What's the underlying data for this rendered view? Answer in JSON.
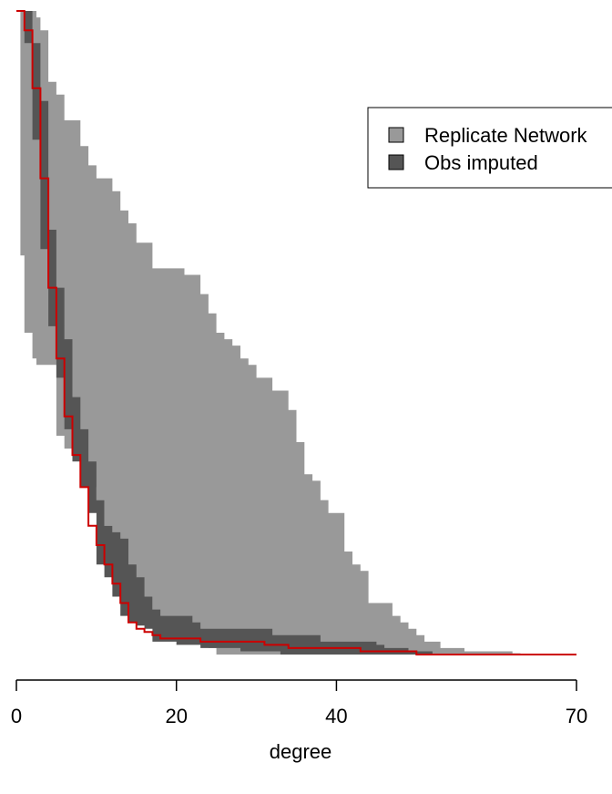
{
  "chart_data": {
    "type": "area",
    "title": "",
    "xlabel": "degree",
    "ylabel": "",
    "xlim": [
      0,
      70
    ],
    "ylim": [
      0,
      1
    ],
    "x_ticks": [
      0,
      20,
      40,
      70
    ],
    "x_tick_labels": [
      "0",
      "20",
      "40",
      "70"
    ],
    "legend": {
      "position": "top-right",
      "entries": [
        {
          "label": "Replicate Network",
          "color": "#999999"
        },
        {
          "label": "Obs imputed",
          "color": "#555555"
        }
      ]
    },
    "series": [
      {
        "name": "Replicate Network",
        "kind": "band",
        "color": "#999999",
        "x": [
          0,
          0.5,
          1,
          2,
          2.5,
          3,
          4,
          5,
          6,
          8,
          9,
          10,
          11,
          12,
          13,
          14,
          15,
          17,
          19,
          21,
          23,
          24,
          25,
          26,
          27,
          28,
          29,
          30,
          31,
          32,
          33,
          34,
          35,
          36,
          37,
          38,
          39,
          40,
          41,
          42,
          43,
          44,
          45,
          46,
          47,
          48,
          49,
          50,
          51,
          52,
          53,
          54,
          55,
          56,
          57,
          58,
          59,
          60,
          61,
          62,
          63,
          64,
          65,
          66,
          67,
          68,
          69,
          70
        ],
        "upper": [
          1.0,
          1.0,
          1.0,
          1.0,
          0.99,
          0.97,
          0.89,
          0.87,
          0.83,
          0.79,
          0.76,
          0.74,
          0.74,
          0.72,
          0.69,
          0.67,
          0.64,
          0.6,
          0.6,
          0.59,
          0.56,
          0.53,
          0.5,
          0.49,
          0.48,
          0.46,
          0.45,
          0.43,
          0.43,
          0.41,
          0.41,
          0.38,
          0.33,
          0.28,
          0.27,
          0.24,
          0.22,
          0.22,
          0.16,
          0.14,
          0.13,
          0.08,
          0.08,
          0.08,
          0.06,
          0.05,
          0.04,
          0.03,
          0.02,
          0.02,
          0.01,
          0.01,
          0.01,
          0.005,
          0.005,
          0.005,
          0.005,
          0.005,
          0.005,
          0.002,
          0.001,
          0.001,
          0.0,
          0.0,
          0.0,
          0.0,
          0.0,
          0.0
        ],
        "lower": [
          1.0,
          0.62,
          0.5,
          0.46,
          0.45,
          0.45,
          0.45,
          0.34,
          0.32,
          0.29,
          0.26,
          0.24,
          0.2,
          0.17,
          0.14,
          0.12,
          0.09,
          0.05,
          0.03,
          0.02,
          0.02,
          0.01,
          0.0,
          0.0,
          0.0,
          0.0,
          0.0,
          0.0,
          0.0,
          0.0,
          0.0,
          0.0,
          0.0,
          0.0,
          0.0,
          0.0,
          0.0,
          0.0,
          0.0,
          0.0,
          0.0,
          0.0,
          0.0,
          0.0,
          0.0,
          0.0,
          0.0,
          0.0,
          0.0,
          0.0,
          0.0,
          0.0,
          0.0,
          0.0,
          0.0,
          0.0,
          0.0,
          0.0,
          0.0,
          0.0,
          0.0,
          0.0,
          0.0,
          0.0,
          0.0,
          0.0,
          0.0,
          0.0
        ]
      },
      {
        "name": "Obs imputed",
        "kind": "band",
        "color": "#555555",
        "x": [
          0,
          1,
          2,
          3,
          4,
          5,
          6,
          7,
          8,
          9,
          10,
          11,
          12,
          13,
          14,
          15,
          16,
          17,
          18,
          19,
          20,
          21,
          22,
          23,
          24,
          25,
          26,
          27,
          28,
          29,
          30,
          31,
          32,
          33,
          34,
          35,
          36,
          37,
          38,
          39,
          40,
          41,
          42,
          43,
          44,
          45,
          46,
          47,
          48,
          49,
          50,
          51,
          52,
          53,
          54,
          55,
          56,
          57,
          58,
          59,
          60,
          61,
          62,
          63,
          64,
          65,
          66,
          67,
          68,
          69,
          70
        ],
        "upper": [
          1.0,
          1.0,
          0.95,
          0.86,
          0.66,
          0.57,
          0.49,
          0.4,
          0.35,
          0.3,
          0.24,
          0.2,
          0.19,
          0.18,
          0.14,
          0.12,
          0.09,
          0.07,
          0.06,
          0.06,
          0.06,
          0.06,
          0.05,
          0.04,
          0.04,
          0.04,
          0.04,
          0.04,
          0.04,
          0.04,
          0.04,
          0.04,
          0.03,
          0.03,
          0.03,
          0.03,
          0.03,
          0.03,
          0.02,
          0.02,
          0.02,
          0.02,
          0.02,
          0.02,
          0.02,
          0.015,
          0.01,
          0.01,
          0.01,
          0.005,
          0.005,
          0.005,
          0.0,
          0.0,
          0.0,
          0.0,
          0.0,
          0.0,
          0.0,
          0.0,
          0.0,
          0.0,
          0.0,
          0.0,
          0.0,
          0.0,
          0.0,
          0.0,
          0.0,
          0.0,
          0.0
        ],
        "lower": [
          1.0,
          0.95,
          0.8,
          0.63,
          0.51,
          0.43,
          0.35,
          0.3,
          0.26,
          0.22,
          0.14,
          0.12,
          0.09,
          0.06,
          0.05,
          0.045,
          0.04,
          0.02,
          0.02,
          0.02,
          0.015,
          0.015,
          0.015,
          0.01,
          0.01,
          0.01,
          0.01,
          0.01,
          0.005,
          0.005,
          0.005,
          0.005,
          0.005,
          0.0,
          0.0,
          0.0,
          0.0,
          0.0,
          0.0,
          0.0,
          0.0,
          0.0,
          0.0,
          0.0,
          0.0,
          0.0,
          0.0,
          0.0,
          0.0,
          0.0,
          0.0,
          0.0,
          0.0,
          0.0,
          0.0,
          0.0,
          0.0,
          0.0,
          0.0,
          0.0,
          0.0,
          0.0,
          0.0,
          0.0,
          0.0,
          0.0,
          0.0,
          0.0,
          0.0,
          0.0,
          0.0
        ]
      },
      {
        "name": "",
        "kind": "step-line",
        "color": "#cc0000",
        "x": [
          0,
          1,
          2,
          3,
          4,
          5,
          6,
          7,
          8,
          9,
          10,
          11,
          12,
          13,
          14,
          15,
          16,
          17,
          18,
          19,
          20,
          21,
          22,
          23,
          24,
          25,
          26,
          27,
          28,
          29,
          30,
          31,
          32,
          33,
          34,
          35,
          36,
          37,
          38,
          39,
          40,
          41,
          42,
          43,
          44,
          45,
          46,
          47,
          48,
          49,
          50,
          55,
          60,
          65,
          70
        ],
        "y": [
          1.0,
          0.97,
          0.88,
          0.74,
          0.57,
          0.46,
          0.37,
          0.31,
          0.26,
          0.2,
          0.17,
          0.14,
          0.11,
          0.08,
          0.05,
          0.04,
          0.035,
          0.03,
          0.025,
          0.025,
          0.025,
          0.025,
          0.025,
          0.02,
          0.02,
          0.02,
          0.02,
          0.02,
          0.02,
          0.02,
          0.02,
          0.015,
          0.015,
          0.015,
          0.01,
          0.01,
          0.01,
          0.01,
          0.01,
          0.01,
          0.01,
          0.01,
          0.01,
          0.005,
          0.005,
          0.005,
          0.005,
          0.005,
          0.005,
          0.005,
          0.0,
          0.0,
          0.0,
          0.0,
          0.0
        ]
      }
    ]
  }
}
